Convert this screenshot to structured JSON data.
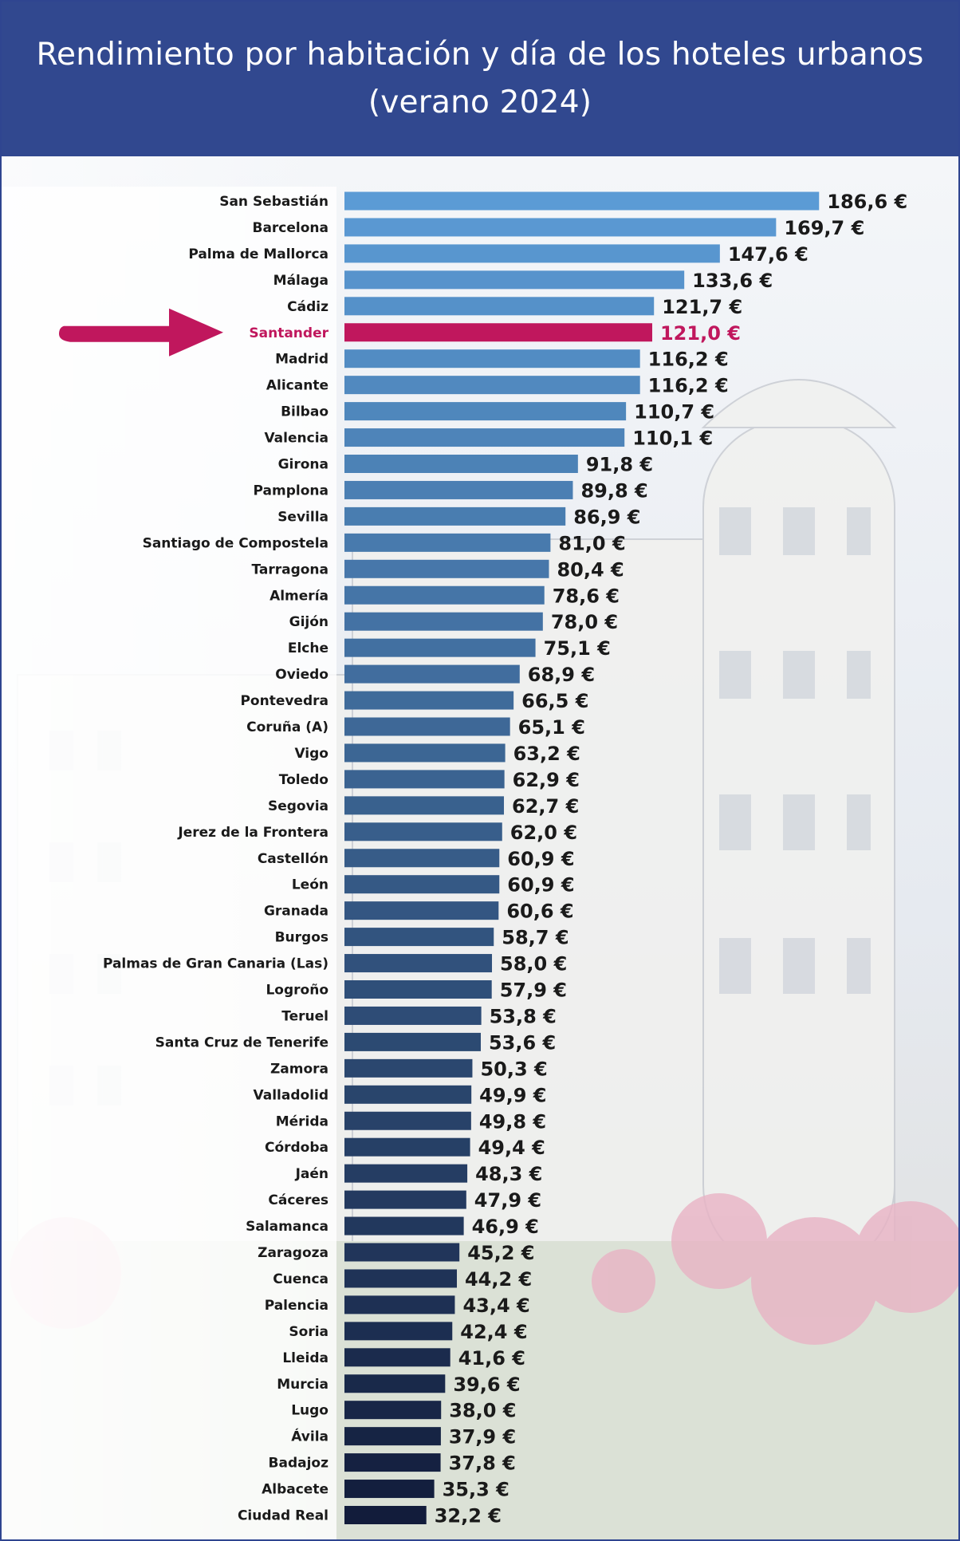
{
  "colors": {
    "header_background": "#31488f",
    "bar_top": "#5b9bd5",
    "bar_bottom": "#121c3b",
    "highlight": "#c0175d",
    "label_text": "#1a1a1a"
  },
  "chart_data": {
    "type": "bar",
    "orientation": "horizontal",
    "title": "Rendimiento por habitación y día de los hoteles urbanos",
    "subtitle": "(verano 2024)",
    "highlight": "Santander",
    "value_suffix": " €",
    "decimal_separator": ",",
    "categories": [
      "San Sebastián",
      "Barcelona",
      "Palma de Mallorca",
      "Málaga",
      "Cádiz",
      "Santander",
      "Madrid",
      "Alicante",
      "Bilbao",
      "Valencia",
      "Girona",
      "Pamplona",
      "Sevilla",
      "Santiago de Compostela",
      "Tarragona",
      "Almería",
      "Gijón",
      "Elche",
      "Oviedo",
      "Pontevedra",
      "Coruña (A)",
      "Vigo",
      "Toledo",
      "Segovia",
      "Jerez de la Frontera",
      "Castellón",
      "León",
      "Granada",
      "Burgos",
      "Palmas de Gran Canaria (Las)",
      "Logroño",
      "Teruel",
      "Santa Cruz de Tenerife",
      "Zamora",
      "Valladolid",
      "Mérida",
      "Córdoba",
      "Jaén",
      "Cáceres",
      "Salamanca",
      "Zaragoza",
      "Cuenca",
      "Palencia",
      "Soria",
      "Lleida",
      "Murcia",
      "Lugo",
      "Ávila",
      "Badajoz",
      "Albacete",
      "Ciudad Real"
    ],
    "values": [
      186.6,
      169.7,
      147.6,
      133.6,
      121.7,
      121.0,
      116.2,
      116.2,
      110.7,
      110.1,
      91.8,
      89.8,
      86.9,
      81.0,
      80.4,
      78.6,
      78.0,
      75.1,
      68.9,
      66.5,
      65.1,
      63.2,
      62.9,
      62.7,
      62.0,
      60.9,
      60.9,
      60.6,
      58.7,
      58.0,
      57.9,
      53.8,
      53.6,
      50.3,
      49.9,
      49.8,
      49.4,
      48.3,
      47.9,
      46.9,
      45.2,
      44.2,
      43.4,
      42.4,
      41.6,
      39.6,
      38.0,
      37.9,
      37.8,
      35.3,
      32.2
    ],
    "value_labels": [
      "186,6 €",
      "169,7 €",
      "147,6 €",
      "133,6 €",
      "121,7 €",
      "121,0 €",
      "116,2 €",
      "116,2 €",
      "110,7 €",
      "110,1 €",
      "91,8 €",
      "89,8 €",
      "86,9 €",
      "81,0 €",
      "80,4 €",
      "78,6 €",
      "78,0 €",
      "75,1 €",
      "68,9 €",
      "66,5 €",
      "65,1 €",
      "63,2 €",
      "62,9 €",
      "62,7 €",
      "62,0 €",
      "60,9 €",
      "60,9 €",
      "60,6 €",
      "58,7 €",
      "58,0 €",
      "57,9 €",
      "53,8 €",
      "53,6 €",
      "50,3 €",
      "49,9 €",
      "49,8 €",
      "49,4 €",
      "48,3 €",
      "47,9 €",
      "46,9 €",
      "45,2 €",
      "44,2 €",
      "43,4 €",
      "42,4 €",
      "41,6 €",
      "39,6 €",
      "38,0 €",
      "37,9 €",
      "37,8 €",
      "35,3 €",
      "32,2 €"
    ],
    "xlabel": "",
    "ylabel": "",
    "grid": false,
    "legend": "none"
  }
}
